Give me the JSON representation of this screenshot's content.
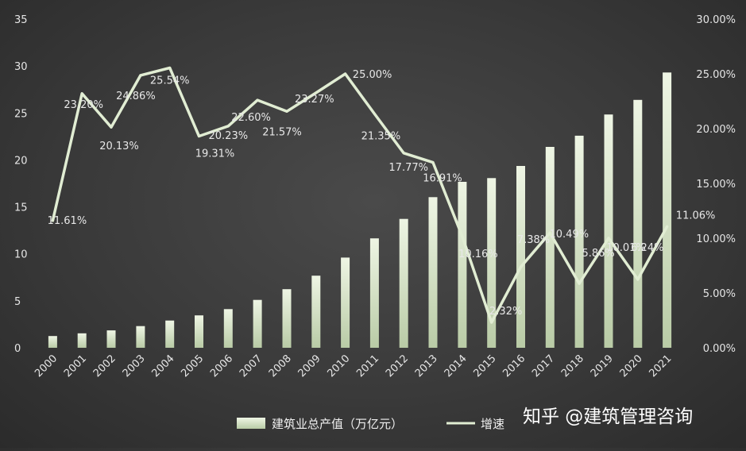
{
  "chart_data": {
    "type": "bar",
    "categories": [
      "2000",
      "2001",
      "2002",
      "2003",
      "2004",
      "2005",
      "2006",
      "2007",
      "2008",
      "2009",
      "2010",
      "2011",
      "2012",
      "2013",
      "2014",
      "2015",
      "2016",
      "2017",
      "2018",
      "2019",
      "2020",
      "2021"
    ],
    "series": [
      {
        "name": "建筑业总产值（万亿元）",
        "type": "bar",
        "axis": "left",
        "values": [
          1.25,
          1.54,
          1.85,
          2.31,
          2.9,
          3.45,
          4.12,
          5.1,
          6.24,
          7.68,
          9.6,
          11.65,
          13.72,
          16.04,
          17.67,
          18.07,
          19.36,
          21.39,
          22.58,
          24.84,
          26.39,
          29.31
        ]
      },
      {
        "name": "增速",
        "type": "line",
        "axis": "right",
        "values": [
          11.61,
          23.2,
          20.13,
          24.86,
          25.54,
          19.31,
          20.23,
          22.6,
          21.57,
          23.27,
          25.0,
          21.35,
          17.77,
          16.91,
          10.16,
          2.32,
          7.38,
          10.49,
          5.86,
          10.01,
          6.24,
          11.06
        ],
        "labels": [
          "11.61%",
          "23.20%",
          "20.13%",
          "24.86%",
          "25.54%",
          "19.31%",
          "20.23%",
          "22.60%",
          "21.57%",
          "23.27%",
          "25.00%",
          "21.35%",
          "17.77%",
          "16.91%",
          "10.16%",
          "2.32%",
          "7.38%",
          "10.49%",
          "5.86%",
          "10.01%",
          "6.24%",
          "11.06%"
        ]
      }
    ],
    "left_axis": {
      "min": 0,
      "max": 35,
      "ticks": [
        "0",
        "5",
        "10",
        "15",
        "20",
        "25",
        "30",
        "35"
      ]
    },
    "right_axis": {
      "min": 0,
      "max": 30,
      "ticks": [
        "0.00%",
        "5.00%",
        "10.00%",
        "15.00%",
        "20.00%",
        "25.00%",
        "30.00%"
      ]
    },
    "grid": false,
    "legend": "bottom"
  },
  "colors": {
    "bar": "#d8e6c9",
    "line": "#e1edd3",
    "text": "#e6e6e6"
  },
  "watermark": "知乎 @建筑管理咨询"
}
